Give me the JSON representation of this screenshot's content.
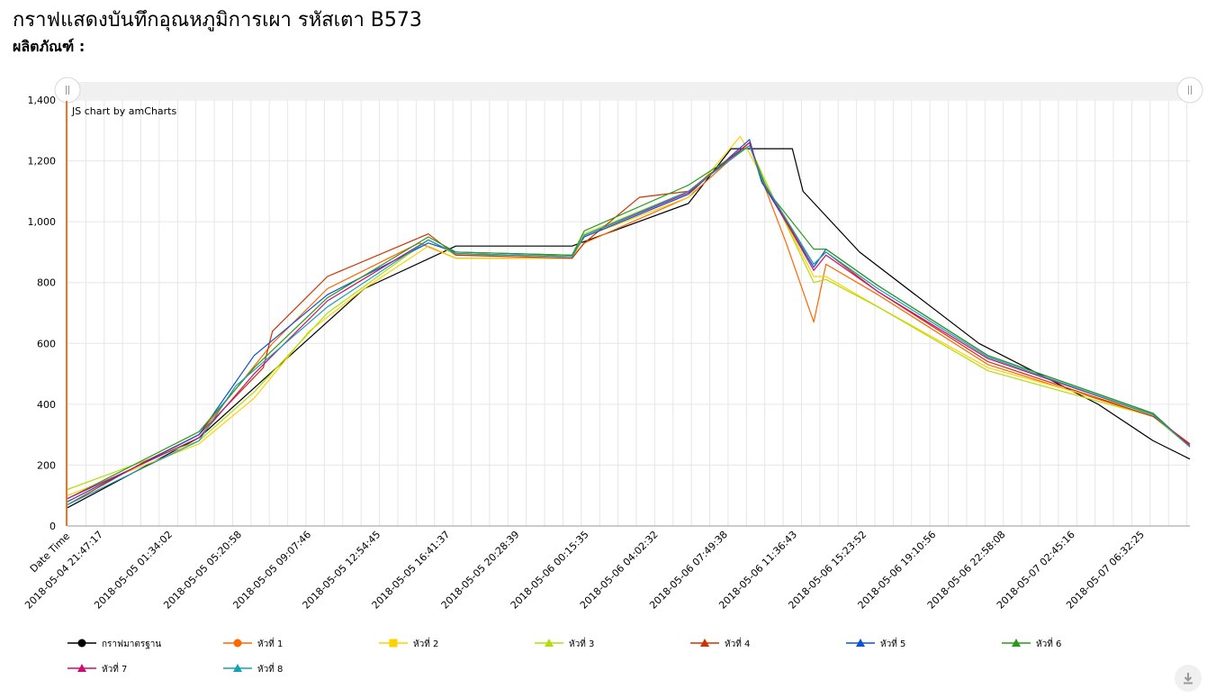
{
  "page": {
    "title": "กราฟแสดงบันทึกอุณหภูมิการเผา รหัสเตา B573",
    "product_label": "ผลิตภัณฑ์ :",
    "credit": "JS chart by amCharts"
  },
  "colors": {
    "grid": "#e6e6e6",
    "scrollbar_bg": "#f0f0f0",
    "cursor_line": "#e8782c"
  },
  "chart_data": {
    "type": "line",
    "xlabel": "Date Time",
    "ylabel": "",
    "ylim": [
      0,
      1400
    ],
    "y_ticks": [
      0,
      200,
      400,
      600,
      800,
      1000,
      1200,
      1400
    ],
    "y_tick_labels": [
      "0",
      "200",
      "400",
      "600",
      "800",
      "1,000",
      "1,200",
      "1,400"
    ],
    "x_range": [
      "2018-05-04 19:50:00",
      "2018-05-07 09:00:00"
    ],
    "x_tick_labels": [
      "2018-05-04 21:47:17",
      "2018-05-05 01:34:02",
      "2018-05-05 05:20:58",
      "2018-05-05 09:07:46",
      "2018-05-05 12:54:45",
      "2018-05-05 16:41:37",
      "2018-05-05 20:28:39",
      "2018-05-06 00:15:35",
      "2018-05-06 04:02:32",
      "2018-05-06 07:49:38",
      "2018-05-06 11:36:43",
      "2018-05-06 15:23:52",
      "2018-05-06 19:10:56",
      "2018-05-06 22:58:08",
      "2018-05-07 02:45:16",
      "2018-05-07 06:32:25"
    ],
    "grid": true,
    "legend_position": "bottom",
    "series": [
      {
        "name": "กราฟมาตรฐาน",
        "color": "#000000",
        "marker": "circle",
        "points": [
          [
            "2018-05-04 19:50:00",
            60
          ],
          [
            "2018-05-05 03:00:00",
            290
          ],
          [
            "2018-05-05 12:00:00",
            780
          ],
          [
            "2018-05-05 17:00:00",
            920
          ],
          [
            "2018-05-05 23:20:00",
            920
          ],
          [
            "2018-05-06 05:40:00",
            1060
          ],
          [
            "2018-05-06 08:00:00",
            1240
          ],
          [
            "2018-05-06 11:20:00",
            1240
          ],
          [
            "2018-05-06 11:55:00",
            1100
          ],
          [
            "2018-05-06 15:00:00",
            900
          ],
          [
            "2018-05-06 21:30:00",
            600
          ],
          [
            "2018-05-07 04:00:00",
            400
          ],
          [
            "2018-05-07 07:00:00",
            280
          ],
          [
            "2018-05-07 09:00:00",
            220
          ]
        ]
      },
      {
        "name": "หัวที่ 1",
        "color": "#ff6600",
        "marker": "circle",
        "points": [
          [
            "2018-05-04 19:50:00",
            80
          ],
          [
            "2018-05-05 03:00:00",
            300
          ],
          [
            "2018-05-05 07:00:00",
            600
          ],
          [
            "2018-05-05 10:00:00",
            780
          ],
          [
            "2018-05-05 15:00:00",
            930
          ],
          [
            "2018-05-05 17:00:00",
            880
          ],
          [
            "2018-05-05 23:20:00",
            880
          ],
          [
            "2018-05-06 00:00:00",
            930
          ],
          [
            "2018-05-06 05:40:00",
            1080
          ],
          [
            "2018-05-06 09:00:00",
            1260
          ],
          [
            "2018-05-06 09:40:00",
            1140
          ],
          [
            "2018-05-06 11:00:00",
            930
          ],
          [
            "2018-05-06 12:30:00",
            670
          ],
          [
            "2018-05-06 13:10:00",
            860
          ],
          [
            "2018-05-06 16:00:00",
            760
          ],
          [
            "2018-05-06 22:00:00",
            530
          ],
          [
            "2018-05-07 07:00:00",
            360
          ],
          [
            "2018-05-07 09:00:00",
            270
          ]
        ]
      },
      {
        "name": "หัวที่ 2",
        "color": "#fcd202",
        "marker": "square",
        "points": [
          [
            "2018-05-04 19:50:00",
            100
          ],
          [
            "2018-05-05 03:00:00",
            270
          ],
          [
            "2018-05-05 06:00:00",
            420
          ],
          [
            "2018-05-05 09:00:00",
            640
          ],
          [
            "2018-05-05 12:00:00",
            780
          ],
          [
            "2018-05-05 15:30:00",
            920
          ],
          [
            "2018-05-05 17:00:00",
            880
          ],
          [
            "2018-05-05 23:20:00",
            880
          ],
          [
            "2018-05-06 00:00:00",
            950
          ],
          [
            "2018-05-06 05:40:00",
            1080
          ],
          [
            "2018-05-06 08:30:00",
            1280
          ],
          [
            "2018-05-06 09:40:00",
            1150
          ],
          [
            "2018-05-06 12:30:00",
            820
          ],
          [
            "2018-05-06 13:10:00",
            820
          ],
          [
            "2018-05-06 16:00:00",
            720
          ],
          [
            "2018-05-06 22:00:00",
            520
          ],
          [
            "2018-05-07 07:00:00",
            370
          ],
          [
            "2018-05-07 09:00:00",
            260
          ]
        ]
      },
      {
        "name": "หัวที่ 3",
        "color": "#b0de09",
        "marker": "triangle",
        "points": [
          [
            "2018-05-04 19:50:00",
            120
          ],
          [
            "2018-05-05 03:00:00",
            280
          ],
          [
            "2018-05-05 06:00:00",
            440
          ],
          [
            "2018-05-05 10:00:00",
            700
          ],
          [
            "2018-05-05 15:30:00",
            940
          ],
          [
            "2018-05-05 17:00:00",
            890
          ],
          [
            "2018-05-05 23:20:00",
            890
          ],
          [
            "2018-05-06 00:00:00",
            960
          ],
          [
            "2018-05-06 05:40:00",
            1100
          ],
          [
            "2018-05-06 09:00:00",
            1250
          ],
          [
            "2018-05-06 09:40:00",
            1160
          ],
          [
            "2018-05-06 12:30:00",
            800
          ],
          [
            "2018-05-06 13:10:00",
            810
          ],
          [
            "2018-05-06 16:00:00",
            720
          ],
          [
            "2018-05-06 22:00:00",
            510
          ],
          [
            "2018-05-07 07:00:00",
            360
          ],
          [
            "2018-05-07 09:00:00",
            260
          ]
        ]
      },
      {
        "name": "หัวที่ 4",
        "color": "#cc3300",
        "marker": "triangle",
        "points": [
          [
            "2018-05-04 19:50:00",
            70
          ],
          [
            "2018-05-05 00:00:00",
            210
          ],
          [
            "2018-05-05 03:00:00",
            300
          ],
          [
            "2018-05-05 06:30:00",
            520
          ],
          [
            "2018-05-05 07:00:00",
            640
          ],
          [
            "2018-05-05 10:00:00",
            820
          ],
          [
            "2018-05-05 15:30:00",
            960
          ],
          [
            "2018-05-05 17:00:00",
            890
          ],
          [
            "2018-05-05 23:20:00",
            880
          ],
          [
            "2018-05-06 00:00:00",
            930
          ],
          [
            "2018-05-06 03:00:00",
            1080
          ],
          [
            "2018-05-06 05:40:00",
            1100
          ],
          [
            "2018-05-06 09:00:00",
            1260
          ],
          [
            "2018-05-06 09:40:00",
            1130
          ],
          [
            "2018-05-06 12:30:00",
            860
          ],
          [
            "2018-05-06 13:10:00",
            900
          ],
          [
            "2018-05-06 16:00:00",
            770
          ],
          [
            "2018-05-06 22:00:00",
            540
          ],
          [
            "2018-05-07 07:00:00",
            360
          ],
          [
            "2018-05-07 09:00:00",
            270
          ]
        ]
      },
      {
        "name": "หัวที่ 5",
        "color": "#0d52d1",
        "marker": "triangle",
        "points": [
          [
            "2018-05-04 19:50:00",
            80
          ],
          [
            "2018-05-05 03:00:00",
            300
          ],
          [
            "2018-05-05 06:00:00",
            560
          ],
          [
            "2018-05-05 10:00:00",
            760
          ],
          [
            "2018-05-05 15:30:00",
            930
          ],
          [
            "2018-05-05 17:00:00",
            900
          ],
          [
            "2018-05-05 23:20:00",
            890
          ],
          [
            "2018-05-06 00:00:00",
            950
          ],
          [
            "2018-05-06 05:40:00",
            1090
          ],
          [
            "2018-05-06 09:00:00",
            1270
          ],
          [
            "2018-05-06 09:40:00",
            1130
          ],
          [
            "2018-05-06 12:30:00",
            850
          ],
          [
            "2018-05-06 13:10:00",
            910
          ],
          [
            "2018-05-06 16:00:00",
            790
          ],
          [
            "2018-05-06 22:00:00",
            560
          ],
          [
            "2018-05-07 07:00:00",
            370
          ],
          [
            "2018-05-07 09:00:00",
            260
          ]
        ]
      },
      {
        "name": "หัวที่ 6",
        "color": "#2a9a1a",
        "marker": "triangle",
        "points": [
          [
            "2018-05-04 19:50:00",
            90
          ],
          [
            "2018-05-05 03:00:00",
            310
          ],
          [
            "2018-05-05 06:00:00",
            520
          ],
          [
            "2018-05-05 10:00:00",
            750
          ],
          [
            "2018-05-05 15:30:00",
            950
          ],
          [
            "2018-05-05 17:00:00",
            900
          ],
          [
            "2018-05-05 23:20:00",
            890
          ],
          [
            "2018-05-06 00:00:00",
            970
          ],
          [
            "2018-05-06 05:40:00",
            1120
          ],
          [
            "2018-05-06 09:00:00",
            1250
          ],
          [
            "2018-05-06 10:00:00",
            1100
          ],
          [
            "2018-05-06 12:30:00",
            910
          ],
          [
            "2018-05-06 13:10:00",
            910
          ],
          [
            "2018-05-06 16:00:00",
            790
          ],
          [
            "2018-05-06 22:00:00",
            560
          ],
          [
            "2018-05-07 07:00:00",
            370
          ],
          [
            "2018-05-07 09:00:00",
            260
          ]
        ]
      },
      {
        "name": "หัวที่ 7",
        "color": "#cd0d74",
        "marker": "triangle",
        "points": [
          [
            "2018-05-04 19:50:00",
            90
          ],
          [
            "2018-05-05 03:00:00",
            290
          ],
          [
            "2018-05-05 06:00:00",
            500
          ],
          [
            "2018-05-05 10:00:00",
            740
          ],
          [
            "2018-05-05 15:30:00",
            940
          ],
          [
            "2018-05-05 17:00:00",
            895
          ],
          [
            "2018-05-05 23:20:00",
            885
          ],
          [
            "2018-05-06 00:00:00",
            955
          ],
          [
            "2018-05-06 05:40:00",
            1095
          ],
          [
            "2018-05-06 09:00:00",
            1260
          ],
          [
            "2018-05-06 09:40:00",
            1140
          ],
          [
            "2018-05-06 12:30:00",
            840
          ],
          [
            "2018-05-06 13:10:00",
            890
          ],
          [
            "2018-05-06 16:00:00",
            770
          ],
          [
            "2018-05-06 22:00:00",
            550
          ],
          [
            "2018-05-07 07:00:00",
            365
          ],
          [
            "2018-05-07 09:00:00",
            265
          ]
        ]
      },
      {
        "name": "หัวที่ 8",
        "color": "#16a0b5",
        "marker": "triangle",
        "points": [
          [
            "2018-05-04 19:50:00",
            70
          ],
          [
            "2018-05-05 03:00:00",
            280
          ],
          [
            "2018-05-05 05:00:00",
            460
          ],
          [
            "2018-05-05 10:00:00",
            720
          ],
          [
            "2018-05-05 15:30:00",
            940
          ],
          [
            "2018-05-05 17:00:00",
            895
          ],
          [
            "2018-05-05 23:20:00",
            885
          ],
          [
            "2018-05-06 00:00:00",
            955
          ],
          [
            "2018-05-06 05:40:00",
            1100
          ],
          [
            "2018-05-06 09:00:00",
            1250
          ],
          [
            "2018-05-06 09:40:00",
            1140
          ],
          [
            "2018-05-06 12:30:00",
            860
          ],
          [
            "2018-05-06 13:10:00",
            900
          ],
          [
            "2018-05-06 16:00:00",
            780
          ],
          [
            "2018-05-06 22:00:00",
            555
          ],
          [
            "2018-05-07 07:00:00",
            365
          ],
          [
            "2018-05-07 09:00:00",
            260
          ]
        ]
      }
    ]
  }
}
